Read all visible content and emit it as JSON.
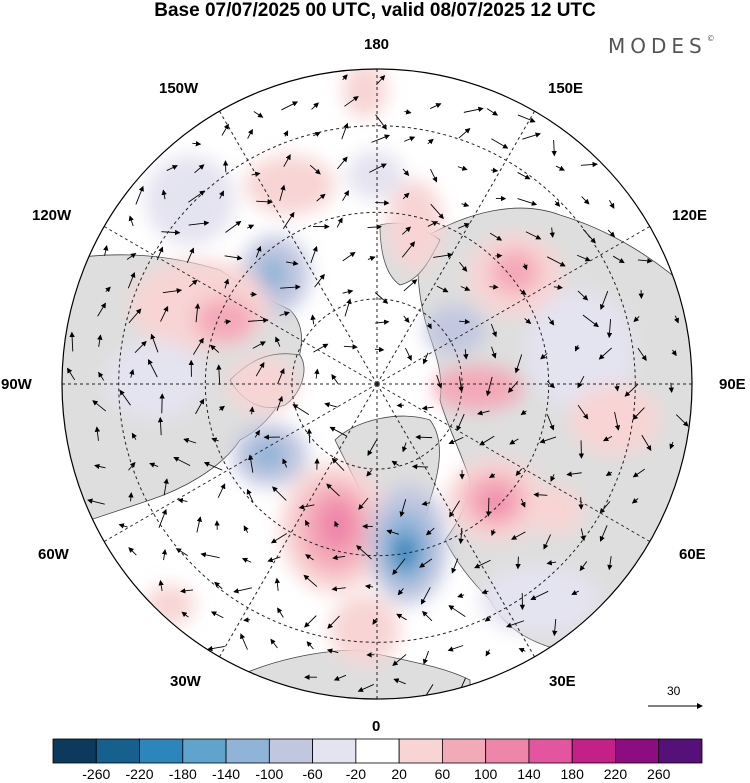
{
  "title": "Base 07/07/2025 00 UTC, valid 08/07/2025 12 UTC",
  "brand": {
    "text": "MODES",
    "mark": "©"
  },
  "longitude_labels": {
    "lon_180": "180",
    "lon_0": "0",
    "lon_150w": "150W",
    "lon_150e": "150E",
    "lon_120w": "120W",
    "lon_120e": "120E",
    "lon_90w": "90W",
    "lon_90e": "90E",
    "lon_60w": "60W",
    "lon_60e": "60E",
    "lon_30w": "30W",
    "lon_30e": "30E"
  },
  "vector_scale": {
    "value": "30"
  },
  "colorbar": {
    "ticks": [
      "-260",
      "-220",
      "-180",
      "-140",
      "-100",
      "-60",
      "-20",
      "20",
      "60",
      "100",
      "140",
      "180",
      "220",
      "260"
    ],
    "colors": [
      "#0d3a5c",
      "#15608f",
      "#2c86bb",
      "#5ea4cd",
      "#8fb4d8",
      "#c2c7e0",
      "#e4e3f0",
      "#ffffff",
      "#f8d4d4",
      "#f4a9b8",
      "#ef85a9",
      "#e455a0",
      "#c51f88",
      "#8e0c82",
      "#55107a"
    ]
  },
  "map_style": {
    "projection": "north-polar-stereographic",
    "land_color": "#dedede",
    "graticule": "dashed",
    "anomaly_centers": [
      {
        "sign": "positive",
        "level": 180,
        "location": "North Atlantic near 55N 40W"
      },
      {
        "sign": "negative",
        "level": -180,
        "location": "Norwegian Sea / Scandinavia"
      },
      {
        "sign": "positive",
        "level": 140,
        "location": "Western Russia"
      },
      {
        "sign": "positive",
        "level": 100,
        "location": "Eastern Siberia"
      },
      {
        "sign": "negative",
        "level": -100,
        "location": "Hudson Bay / Labrador"
      },
      {
        "sign": "negative",
        "level": -100,
        "location": "Northwestern Canada"
      }
    ]
  }
}
